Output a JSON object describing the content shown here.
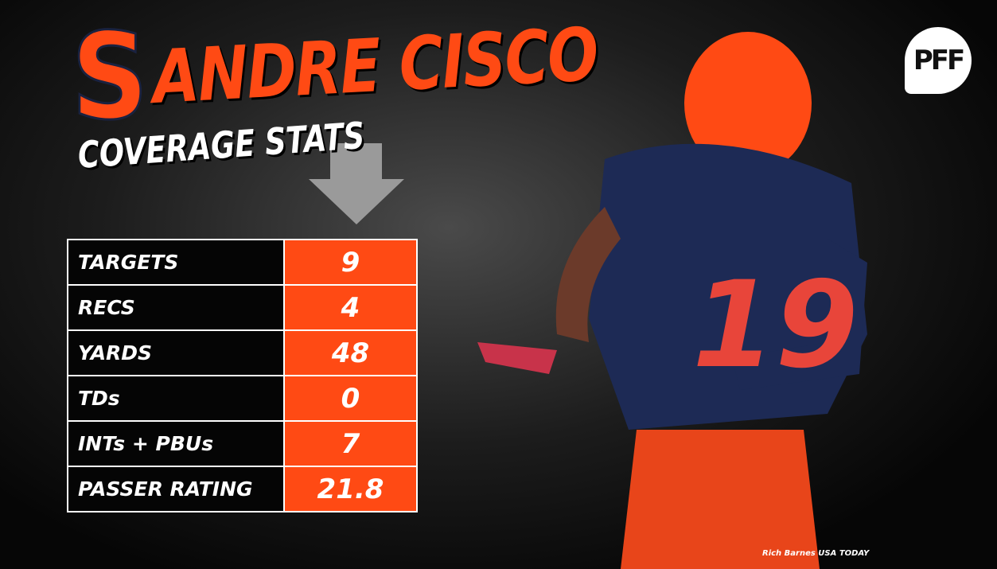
{
  "logo": "S",
  "title": "ANDRE CISCO",
  "subtitle": "COVERAGE STATS",
  "brand": "PFF",
  "table": {
    "rows": [
      [
        "TARGETS",
        "9"
      ],
      [
        "RECS",
        "4"
      ],
      [
        "YARDS",
        "48"
      ],
      [
        "TDs",
        "0"
      ],
      [
        "INTs + PBUs",
        "7"
      ],
      [
        "PASSER RATING",
        "21.8"
      ]
    ]
  },
  "credit": "Rich Barnes USA TODAY"
}
